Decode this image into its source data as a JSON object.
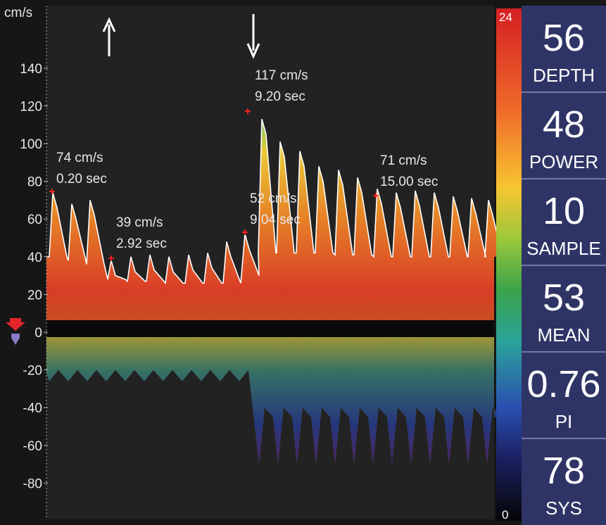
{
  "scale": {
    "unit": "cm/s",
    "ticks": [
      140,
      120,
      100,
      80,
      60,
      40,
      20,
      0,
      -20,
      -40,
      -60,
      -80
    ]
  },
  "annotations": [
    {
      "speed": "74 cm/s",
      "time": "0.20 sec"
    },
    {
      "speed": "39 cm/s",
      "time": "2.92 sec"
    },
    {
      "speed": "117 cm/s",
      "time": "9.20 sec"
    },
    {
      "speed": "52 cm/s",
      "time": "9.04 sec"
    },
    {
      "speed": "71 cm/s",
      "time": "15.00 sec"
    }
  ],
  "colorbar": {
    "max": "24",
    "min": "0"
  },
  "readouts": [
    {
      "value": "56",
      "label": "DEPTH"
    },
    {
      "value": "48",
      "label": "POWER"
    },
    {
      "value": "10",
      "label": "SAMPLE"
    },
    {
      "value": "53",
      "label": "MEAN"
    },
    {
      "value": "0.76",
      "label": "PI"
    },
    {
      "value": "78",
      "label": "SYS"
    }
  ]
}
